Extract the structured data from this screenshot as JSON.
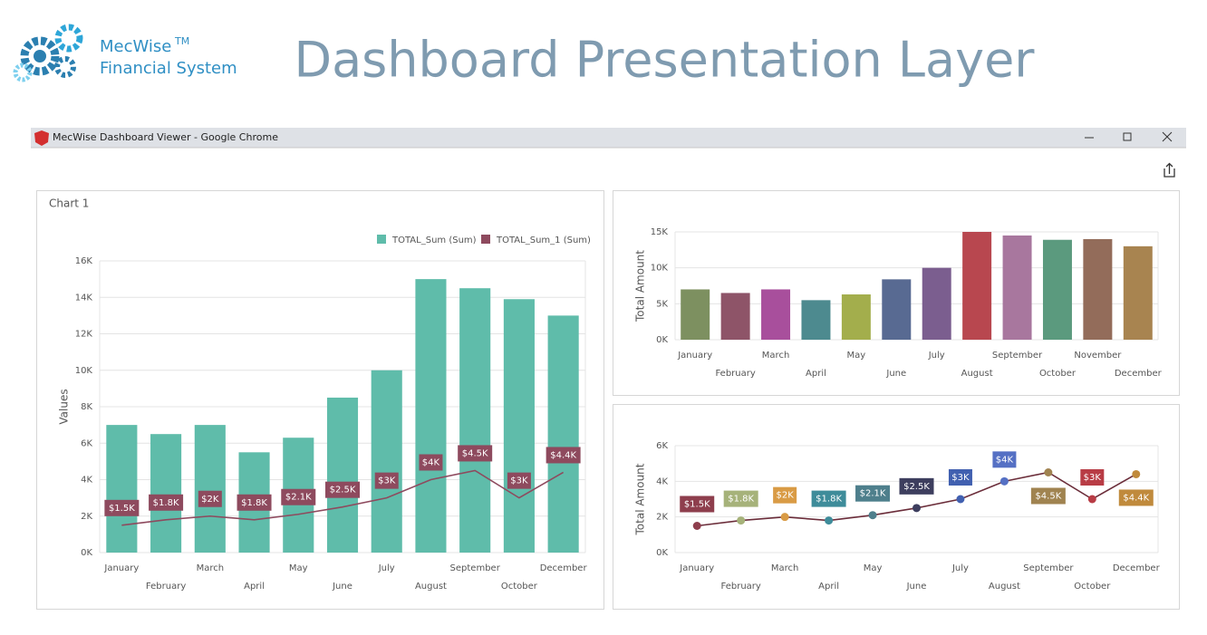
{
  "header": {
    "brand_name": "MecWise",
    "brand_mark": "TM",
    "brand_sub": "Financial System",
    "title": "Dashboard Presentation Layer"
  },
  "browser": {
    "title": "MecWise Dashboard Viewer - Google Chrome"
  },
  "chart_data": [
    {
      "type": "bar",
      "title": "Chart 1",
      "ylabel": "Values",
      "categories": [
        "January",
        "February",
        "March",
        "April",
        "May",
        "June",
        "July",
        "August",
        "September",
        "October",
        "December"
      ],
      "series": [
        {
          "name": "TOTAL_Sum (Sum)",
          "type": "bar",
          "color": "#5fbcaa",
          "values": [
            7000,
            6500,
            7000,
            5500,
            6300,
            8500,
            10000,
            15000,
            14500,
            13900,
            13000
          ]
        },
        {
          "name": "TOTAL_Sum_1 (Sum)",
          "type": "line",
          "color": "#8e4a5e",
          "values": [
            1500,
            1800,
            2000,
            1800,
            2100,
            2500,
            3000,
            4000,
            4500,
            3000,
            4400
          ],
          "value_labels": [
            "$1.5K",
            "$1.8K",
            "$2K",
            "$1.8K",
            "$2.1K",
            "$2.5K",
            "$3K",
            "$4K",
            "$4.5K",
            "$3K",
            "$4.4K"
          ]
        }
      ],
      "ylim": [
        0,
        16000
      ],
      "yticks": [
        {
          "value": 0,
          "label": "0K"
        },
        {
          "value": 2000,
          "label": "2K"
        },
        {
          "value": 4000,
          "label": "4K"
        },
        {
          "value": 6000,
          "label": "6K"
        },
        {
          "value": 8000,
          "label": "8K"
        },
        {
          "value": 10000,
          "label": "10K"
        },
        {
          "value": 12000,
          "label": "12K"
        },
        {
          "value": 14000,
          "label": "14K"
        },
        {
          "value": 16000,
          "label": "16K"
        }
      ],
      "grid": true,
      "legend": "top-right"
    },
    {
      "type": "bar",
      "ylabel": "Total Amount",
      "categories": [
        "January",
        "February",
        "March",
        "April",
        "May",
        "June",
        "July",
        "August",
        "September",
        "October",
        "November",
        "December"
      ],
      "values": [
        7000,
        6500,
        7000,
        5500,
        6300,
        8400,
        10000,
        15000,
        14500,
        13900,
        14000,
        13000
      ],
      "colors": [
        "#7d9060",
        "#8e5468",
        "#a84f9c",
        "#4d8a8f",
        "#a3ae4c",
        "#586a92",
        "#7b5e8f",
        "#b8474f",
        "#a8779e",
        "#5b9a7e",
        "#936c5a",
        "#a88450"
      ],
      "ylim": [
        0,
        15000
      ],
      "yticks": [
        {
          "value": 0,
          "label": "0K"
        },
        {
          "value": 5000,
          "label": "5K"
        },
        {
          "value": 10000,
          "label": "10K"
        },
        {
          "value": 15000,
          "label": "15K"
        }
      ],
      "grid": true
    },
    {
      "type": "line",
      "ylabel": "Total Amount",
      "categories": [
        "January",
        "February",
        "March",
        "April",
        "May",
        "June",
        "July",
        "August",
        "September",
        "October",
        "December"
      ],
      "values": [
        1500,
        1800,
        2000,
        1800,
        2100,
        2500,
        3000,
        4000,
        4500,
        3000,
        4400
      ],
      "value_labels": [
        "$1.5K",
        "$1.8K",
        "$2K",
        "$1.8K",
        "$2.1K",
        "$2.5K",
        "$3K",
        "$4K",
        "$4.5K",
        "$3K",
        "$4.4K"
      ],
      "color": "#6b2d3a",
      "colors": [
        "#8e3e4d",
        "#a6b27a",
        "#d99b45",
        "#3e8c9a",
        "#4e7f8c",
        "#3d3e5e",
        "#4160b0",
        "#5570c4",
        "#a08350",
        "#b83c45",
        "#c08a3c"
      ],
      "ylim": [
        0,
        6000
      ],
      "yticks": [
        {
          "value": 0,
          "label": "0K"
        },
        {
          "value": 2000,
          "label": "2K"
        },
        {
          "value": 4000,
          "label": "4K"
        },
        {
          "value": 6000,
          "label": "6K"
        }
      ],
      "grid": true
    }
  ]
}
